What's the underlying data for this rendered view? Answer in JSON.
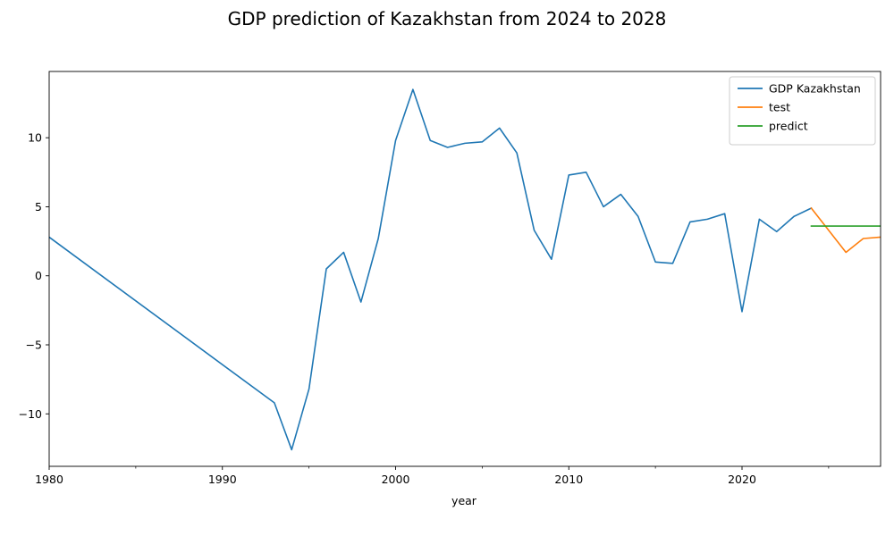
{
  "chart_data": {
    "type": "line",
    "title": "GDP prediction of Kazakhstan from 2024 to 2028",
    "xlabel": "year",
    "ylabel": "",
    "xlim": [
      1980,
      2028
    ],
    "ylim": [
      -13.8,
      14.8
    ],
    "x_ticks": [
      1980,
      1990,
      2000,
      2010,
      2020
    ],
    "x_minor_ticks": [
      1985,
      1995,
      2005,
      2015,
      2025
    ],
    "y_ticks": [
      -10,
      -5,
      0,
      5,
      10
    ],
    "y_tick_labels": [
      "−10",
      "−5",
      "0",
      "5",
      "10"
    ],
    "grid": false,
    "legend_position": "top-right",
    "series": [
      {
        "name": "GDP Kazakhstan",
        "color": "#1f77b4",
        "x": [
          1980,
          1993,
          1994,
          1995,
          1996,
          1997,
          1998,
          1999,
          2000,
          2001,
          2002,
          2003,
          2004,
          2005,
          2006,
          2007,
          2008,
          2009,
          2010,
          2011,
          2012,
          2013,
          2014,
          2015,
          2016,
          2017,
          2018,
          2019,
          2020,
          2021,
          2022,
          2023,
          2024
        ],
        "values": [
          2.8,
          -9.2,
          -12.6,
          -8.2,
          0.5,
          1.7,
          -1.9,
          2.7,
          9.8,
          13.5,
          9.8,
          9.3,
          9.6,
          9.7,
          10.7,
          8.9,
          3.3,
          1.2,
          7.3,
          7.5,
          5.0,
          5.9,
          4.3,
          1.0,
          0.9,
          3.9,
          4.1,
          4.5,
          -2.6,
          4.1,
          3.2,
          4.3,
          4.9
        ]
      },
      {
        "name": "test",
        "color": "#ff7f0e",
        "x": [
          2024,
          2025,
          2026,
          2027,
          2028
        ],
        "values": [
          4.9,
          3.3,
          1.7,
          2.7,
          2.8
        ]
      },
      {
        "name": "predict",
        "color": "#2ca02c",
        "x": [
          2024,
          2025,
          2026,
          2027,
          2028
        ],
        "values": [
          3.6,
          3.6,
          3.6,
          3.6,
          3.6
        ]
      }
    ]
  }
}
